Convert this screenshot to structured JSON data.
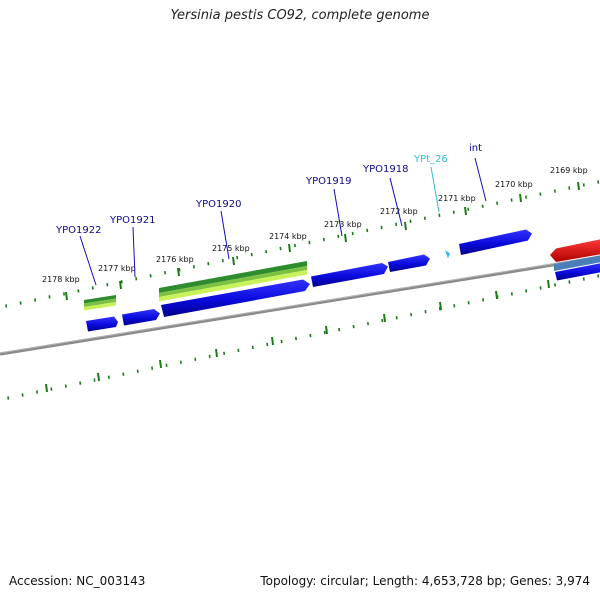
{
  "title": "Yersinia pestis CO92, complete genome",
  "footer": {
    "accession_label": "Accession:",
    "accession": "NC_003143",
    "topology_label": "Topology:",
    "topology": "circular",
    "length_label": "Length:",
    "length": "4,653,728 bp",
    "genes_label": "Genes:",
    "genes": "3,974"
  },
  "ticks": [
    {
      "label": "2169 kbp"
    },
    {
      "label": "2170 kbp"
    },
    {
      "label": "2171 kbp"
    },
    {
      "label": "2172 kbp"
    },
    {
      "label": "2173 kbp"
    },
    {
      "label": "2174 kbp"
    },
    {
      "label": "2175 kbp"
    },
    {
      "label": "2176 kbp"
    },
    {
      "label": "2177 kbp"
    },
    {
      "label": "2178 kbp"
    }
  ],
  "gene_labels": [
    {
      "label": "int",
      "kind": "gene"
    },
    {
      "label": "YPt_26",
      "kind": "trna"
    },
    {
      "label": "YPO1918",
      "kind": "gene"
    },
    {
      "label": "YPO1919",
      "kind": "gene"
    },
    {
      "label": "YPO1920",
      "kind": "gene"
    },
    {
      "label": "YPO1921",
      "kind": "gene"
    },
    {
      "label": "YPO1922",
      "kind": "gene"
    }
  ],
  "colors": {
    "cds": "#1010e0",
    "trna": "#33bbdd",
    "rrna": "#e01010",
    "feature_dark_green": "#2e8b2e",
    "feature_light_green": "#aaee44",
    "tick": "#1a7a1a",
    "backbone": "#888888"
  }
}
